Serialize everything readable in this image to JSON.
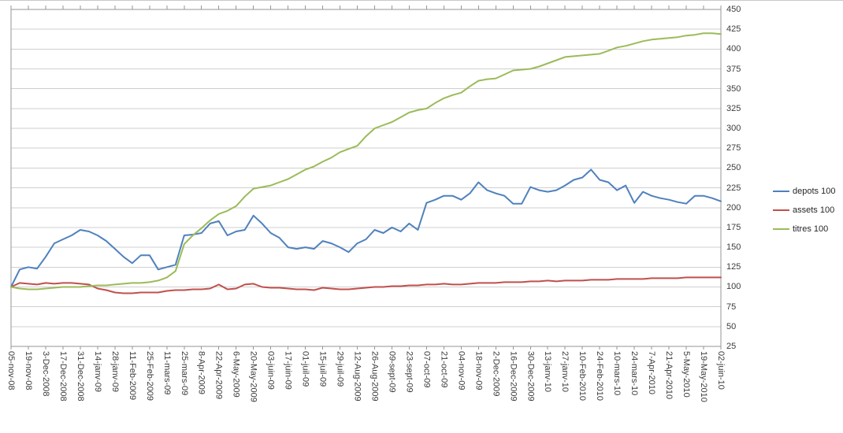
{
  "chart_data": {
    "type": "line",
    "title": "",
    "xlabel": "",
    "ylabel": "",
    "grid": true,
    "legend_position": "right",
    "label_every_n_points": 2,
    "colors": {
      "grid": "#cfcfcf",
      "axis": "#969696",
      "text": "#3c3c3c"
    },
    "y_axis": {
      "min": 25,
      "max": 450,
      "step": 25,
      "side": "right",
      "tick_labels": [
        "450",
        "425",
        "400",
        "375",
        "350",
        "325",
        "300",
        "275",
        "250",
        "225",
        "200",
        "175",
        "150",
        "125",
        "100",
        "75",
        "50",
        "25"
      ]
    },
    "x_tick_labels": [
      "05-nov-08",
      "19-nov-08",
      "3-Dec-2008",
      "17-Dec-2008",
      "31-Dec-2008",
      "14-janv-09",
      "28-janv-09",
      "11-Feb-2009",
      "25-Feb-2009",
      "11-mars-09",
      "25-mars-09",
      "8-Apr-2009",
      "22-Apr-2009",
      "6-May-2009",
      "20-May-2009",
      "03-juin-09",
      "17-juin-09",
      "01-juil-09",
      "15-juil-09",
      "29-juil-09",
      "12-Aug-2009",
      "26-Aug-2009",
      "09-sept-09",
      "23-sept-09",
      "07-oct-09",
      "21-oct-09",
      "04-nov-09",
      "18-nov-09",
      "2-Dec-2009",
      "16-Dec-2009",
      "30-Dec-2009",
      "13-janv-10",
      "27-janv-10",
      "10-Feb-2010",
      "24-Feb-2010",
      "10-mars-10",
      "24-mars-10",
      "7-Apr-2010",
      "21-Apr-2010",
      "5-May-2010",
      "19-May-2010",
      "02-juin-10"
    ],
    "series": [
      {
        "name": "depots 100",
        "color": "#4F81BD",
        "values": [
          100,
          122,
          125,
          123,
          138,
          155,
          160,
          165,
          172,
          170,
          165,
          158,
          148,
          138,
          130,
          140,
          140,
          122,
          125,
          128,
          165,
          166,
          168,
          180,
          183,
          165,
          170,
          172,
          190,
          180,
          168,
          162,
          150,
          148,
          150,
          148,
          158,
          155,
          150,
          144,
          155,
          160,
          172,
          168,
          175,
          170,
          180,
          172,
          206,
          210,
          215,
          215,
          210,
          218,
          232,
          222,
          218,
          215,
          205,
          205,
          226,
          222,
          220,
          222,
          228,
          235,
          238,
          248,
          235,
          232,
          222,
          228,
          206,
          220,
          215,
          212,
          210,
          207,
          205,
          215,
          215,
          212,
          208
        ]
      },
      {
        "name": "assets 100",
        "color": "#C0504D",
        "values": [
          100,
          105,
          104,
          103,
          105,
          104,
          105,
          105,
          104,
          103,
          98,
          96,
          93,
          92,
          92,
          93,
          93,
          93,
          95,
          96,
          96,
          97,
          97,
          98,
          103,
          97,
          98,
          103,
          104,
          100,
          99,
          99,
          98,
          97,
          97,
          96,
          99,
          98,
          97,
          97,
          98,
          99,
          100,
          100,
          101,
          101,
          102,
          102,
          103,
          103,
          104,
          103,
          103,
          104,
          105,
          105,
          105,
          106,
          106,
          106,
          107,
          107,
          108,
          107,
          108,
          108,
          108,
          109,
          109,
          109,
          110,
          110,
          110,
          110,
          111,
          111,
          111,
          111,
          112,
          112,
          112,
          112,
          112
        ]
      },
      {
        "name": "titres 100",
        "color": "#9BBB59",
        "values": [
          100,
          98,
          97,
          97,
          98,
          99,
          100,
          100,
          100,
          101,
          102,
          102,
          103,
          104,
          105,
          105,
          106,
          108,
          112,
          120,
          154,
          165,
          174,
          184,
          192,
          196,
          202,
          214,
          224,
          226,
          228,
          232,
          236,
          242,
          248,
          252,
          258,
          263,
          270,
          274,
          278,
          290,
          300,
          304,
          308,
          314,
          320,
          323,
          325,
          332,
          338,
          342,
          345,
          353,
          360,
          362,
          363,
          368,
          373,
          374,
          375,
          378,
          382,
          386,
          390,
          391,
          392,
          393,
          394,
          398,
          402,
          404,
          407,
          410,
          412,
          413,
          414,
          415,
          417,
          418,
          420,
          420,
          419
        ]
      }
    ]
  },
  "legend": {
    "items": [
      {
        "label": "depots 100"
      },
      {
        "label": "assets 100"
      },
      {
        "label": "titres 100"
      }
    ]
  }
}
